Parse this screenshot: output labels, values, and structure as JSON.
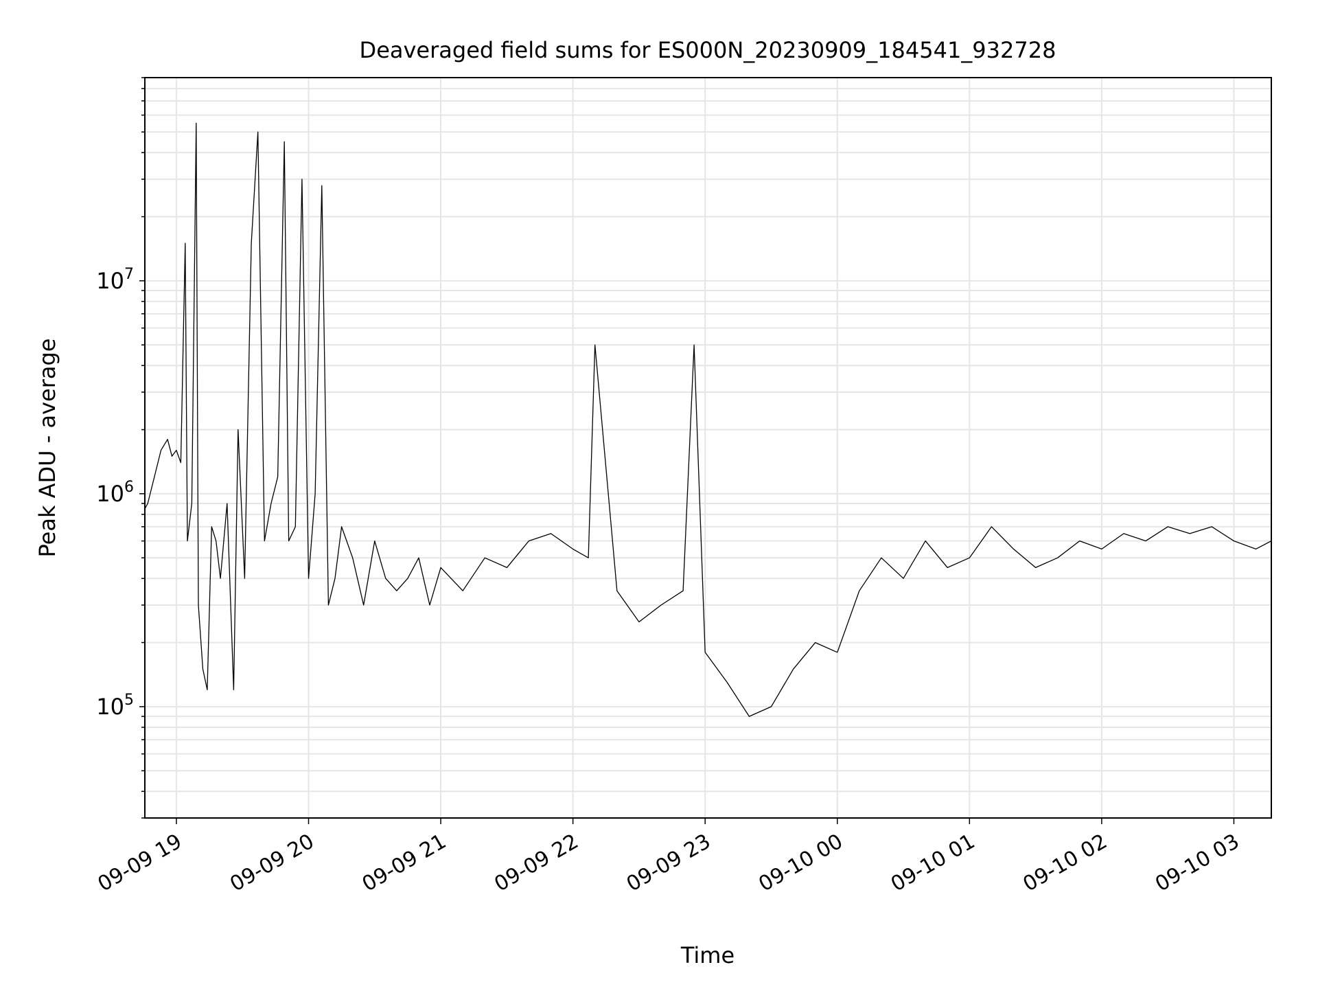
{
  "chart_data": {
    "type": "line",
    "title": "Deaveraged field sums for ES000N_20230909_184541_932728",
    "xlabel": "Time",
    "ylabel": "Peak ADU - average",
    "yscale": "log",
    "ylim": [
      30000,
      90000000
    ],
    "xlim": [
      "2023-09-09 18:45:41",
      "2023-09-10 03:17:00"
    ],
    "xticks": [
      {
        "t": "2023-09-09 19:00",
        "label": "09-09 19"
      },
      {
        "t": "2023-09-09 20:00",
        "label": "09-09 20"
      },
      {
        "t": "2023-09-09 21:00",
        "label": "09-09 21"
      },
      {
        "t": "2023-09-09 22:00",
        "label": "09-09 22"
      },
      {
        "t": "2023-09-09 23:00",
        "label": "09-09 23"
      },
      {
        "t": "2023-09-10 00:00",
        "label": "09-10 00"
      },
      {
        "t": "2023-09-10 01:00",
        "label": "09-10 01"
      },
      {
        "t": "2023-09-10 02:00",
        "label": "09-10 02"
      },
      {
        "t": "2023-09-10 03:00",
        "label": "09-10 03"
      }
    ],
    "yticks": [
      {
        "value": 100000,
        "base": "10",
        "exp": "5"
      },
      {
        "value": 1000000,
        "base": "10",
        "exp": "6"
      },
      {
        "value": 10000000,
        "base": "10",
        "exp": "7"
      }
    ],
    "grid": true,
    "line_color": "#000000",
    "grid_color": "#e6e6e6",
    "series": [
      {
        "x": [
          "2023-09-09 18:45:41",
          "2023-09-09 18:47",
          "2023-09-09 18:50",
          "2023-09-09 18:53",
          "2023-09-09 18:56",
          "2023-09-09 18:58",
          "2023-09-09 19:00",
          "2023-09-09 19:02",
          "2023-09-09 19:04",
          "2023-09-09 19:05",
          "2023-09-09 19:07",
          "2023-09-09 19:09",
          "2023-09-09 19:10",
          "2023-09-09 19:12",
          "2023-09-09 19:14",
          "2023-09-09 19:16",
          "2023-09-09 19:18",
          "2023-09-09 19:20",
          "2023-09-09 19:23",
          "2023-09-09 19:26",
          "2023-09-09 19:28",
          "2023-09-09 19:31",
          "2023-09-09 19:34",
          "2023-09-09 19:37",
          "2023-09-09 19:40",
          "2023-09-09 19:43",
          "2023-09-09 19:46",
          "2023-09-09 19:49",
          "2023-09-09 19:51",
          "2023-09-09 19:54",
          "2023-09-09 19:57",
          "2023-09-09 20:00",
          "2023-09-09 20:03",
          "2023-09-09 20:06",
          "2023-09-09 20:09",
          "2023-09-09 20:12",
          "2023-09-09 20:15",
          "2023-09-09 20:20",
          "2023-09-09 20:25",
          "2023-09-09 20:30",
          "2023-09-09 20:35",
          "2023-09-09 20:40",
          "2023-09-09 20:45",
          "2023-09-09 20:50",
          "2023-09-09 20:55",
          "2023-09-09 21:00",
          "2023-09-09 21:10",
          "2023-09-09 21:20",
          "2023-09-09 21:30",
          "2023-09-09 21:40",
          "2023-09-09 21:50",
          "2023-09-09 22:00",
          "2023-09-09 22:07",
          "2023-09-09 22:10",
          "2023-09-09 22:20",
          "2023-09-09 22:30",
          "2023-09-09 22:40",
          "2023-09-09 22:50",
          "2023-09-09 22:55",
          "2023-09-09 23:00",
          "2023-09-09 23:10",
          "2023-09-09 23:20",
          "2023-09-09 23:30",
          "2023-09-09 23:40",
          "2023-09-09 23:50",
          "2023-09-10 00:00",
          "2023-09-10 00:10",
          "2023-09-10 00:20",
          "2023-09-10 00:30",
          "2023-09-10 00:40",
          "2023-09-10 00:50",
          "2023-09-10 01:00",
          "2023-09-10 01:10",
          "2023-09-10 01:20",
          "2023-09-10 01:30",
          "2023-09-10 01:40",
          "2023-09-10 01:50",
          "2023-09-10 02:00",
          "2023-09-10 02:10",
          "2023-09-10 02:20",
          "2023-09-10 02:30",
          "2023-09-10 02:40",
          "2023-09-10 02:50",
          "2023-09-10 03:00",
          "2023-09-10 03:10",
          "2023-09-10 03:17"
        ],
        "y": [
          850000,
          900000,
          1200000,
          1600000,
          1800000,
          1500000,
          1600000,
          1400000,
          15000000,
          600000,
          900000,
          55000000,
          300000,
          150000,
          120000,
          700000,
          600000,
          400000,
          900000,
          120000,
          2000000,
          400000,
          15000000,
          50000000,
          600000,
          900000,
          1200000,
          45000000,
          600000,
          700000,
          30000000,
          400000,
          1000000,
          28000000,
          300000,
          400000,
          700000,
          500000,
          300000,
          600000,
          400000,
          350000,
          400000,
          500000,
          300000,
          450000,
          350000,
          500000,
          450000,
          600000,
          650000,
          550000,
          500000,
          5000000,
          350000,
          250000,
          300000,
          350000,
          5000000,
          180000,
          130000,
          90000,
          100000,
          150000,
          200000,
          180000,
          350000,
          500000,
          400000,
          600000,
          450000,
          500000,
          700000,
          550000,
          450000,
          500000,
          600000,
          550000,
          650000,
          600000,
          700000,
          650000,
          700000,
          600000,
          550000,
          600000
        ]
      }
    ]
  }
}
